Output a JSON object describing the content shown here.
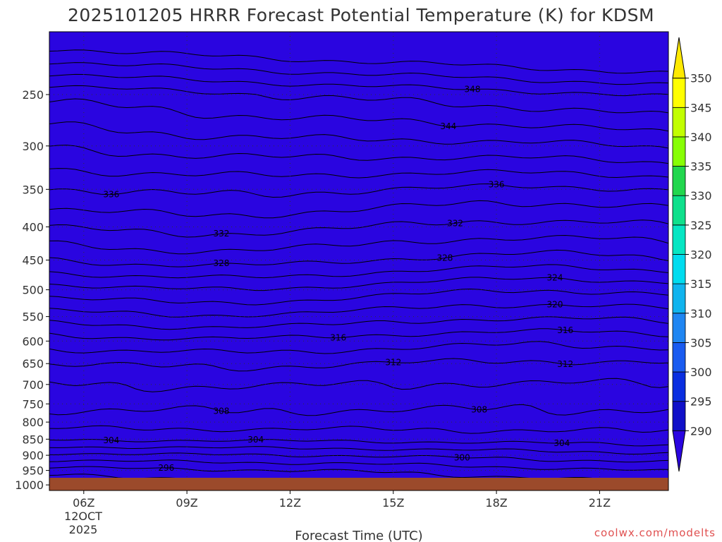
{
  "chart_data": {
    "type": "heatmap",
    "title": "2025101205 HRRR Forecast Potential Temperature (K) for KDSM",
    "xlabel": "Forecast Time (UTC)",
    "ylabel": "",
    "credit": "coolwx.com/modelts",
    "x_ticks": [
      "06Z",
      "09Z",
      "12Z",
      "15Z",
      "18Z",
      "21Z"
    ],
    "x_date_labels": [
      "12OCT",
      "2025"
    ],
    "x_range_hours": [
      5,
      23
    ],
    "y_ticks": [
      250,
      300,
      350,
      400,
      450,
      500,
      550,
      600,
      650,
      700,
      750,
      800,
      850,
      900,
      950,
      1000
    ],
    "y_range_hpa": [
      200,
      1020
    ],
    "y_scale": "log",
    "surface_pressure_hpa": 975,
    "colorbar": {
      "levels": [
        290,
        295,
        300,
        305,
        310,
        315,
        320,
        325,
        330,
        335,
        340,
        345,
        350
      ],
      "colors": [
        "#2a05e0",
        "#1010c8",
        "#0a2ee0",
        "#1a5bf0",
        "#1f86f2",
        "#10b4ee",
        "#00dcef",
        "#06e6c3",
        "#0fe08c",
        "#22d74e",
        "#88ff05",
        "#c2ff00",
        "#ffff00",
        "#ffea00"
      ]
    },
    "contour_labels": [
      "348",
      "344",
      "336",
      "336",
      "332",
      "328",
      "328",
      "332",
      "324",
      "320",
      "316",
      "316",
      "312",
      "312",
      "308",
      "308",
      "304",
      "304",
      "304",
      "300",
      "296"
    ],
    "grid": true,
    "colors": {
      "ground": "#9b4a2b",
      "contour": "#000000"
    }
  }
}
